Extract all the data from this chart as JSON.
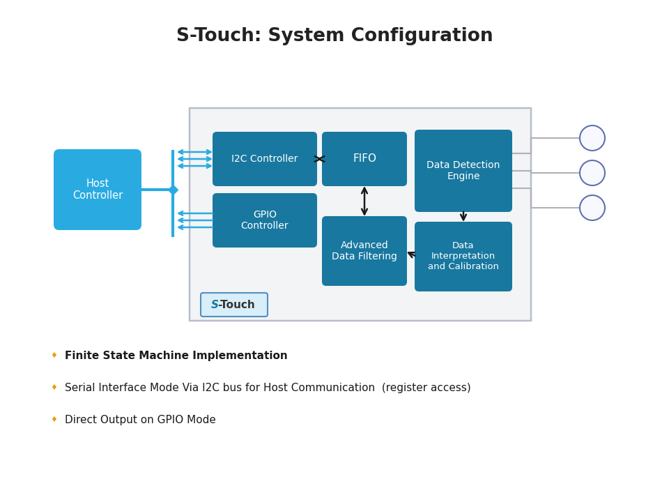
{
  "title": "S-Touch: System Configuration",
  "title_fontsize": 19,
  "bg_color": "#ffffff",
  "teal_box": "#1878a0",
  "cyan_box": "#29abe2",
  "outer_box_fill": "#f2f4f6",
  "outer_box_edge": "#b8bec8",
  "bullet_color": "#e8a000",
  "circle_edge": "#6070b0",
  "circle_fill": "#f8f9ff",
  "bus_color": "#29abe2",
  "arrow_color": "#1a1a1a",
  "line_color": "#b0b0b8",
  "bullet_items": [
    {
      "text": "Finite State Machine Implementation",
      "bold": true
    },
    {
      "text": "Serial Interface Mode Via I2C bus for Host Communication  (register access)",
      "bold": false
    },
    {
      "text": "Direct Output on GPIO Mode",
      "bold": false
    }
  ]
}
